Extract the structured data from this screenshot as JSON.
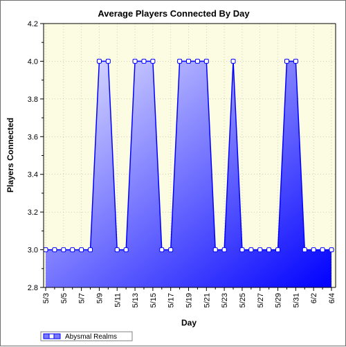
{
  "chart_data": {
    "type": "area",
    "title": "Average Players Connected By Day",
    "xlabel": "Day",
    "ylabel": "Players Connected",
    "ylim": [
      2.8,
      4.2
    ],
    "yticks": [
      "2.8",
      "3.0",
      "3.2",
      "3.4",
      "3.6",
      "3.8",
      "4.0",
      "4.2"
    ],
    "x": [
      "5/3",
      "5/4",
      "5/5",
      "5/6",
      "5/7",
      "5/8",
      "5/9",
      "5/10",
      "5/11",
      "5/12",
      "5/13",
      "5/14",
      "5/15",
      "5/16",
      "5/17",
      "5/18",
      "5/19",
      "5/20",
      "5/21",
      "5/22",
      "5/23",
      "5/24",
      "5/25",
      "5/26",
      "5/27",
      "5/28",
      "5/29",
      "5/30",
      "5/31",
      "6/1",
      "6/2",
      "6/3",
      "6/4"
    ],
    "xtick_labels": [
      "5/3",
      "5/5",
      "5/7",
      "5/9",
      "5/11",
      "5/13",
      "5/15",
      "5/17",
      "5/19",
      "5/21",
      "5/23",
      "5/25",
      "5/27",
      "5/29",
      "5/31",
      "6/2",
      "6/4"
    ],
    "grid": true,
    "legend_position": "bottom-left",
    "series": [
      {
        "name": "Abysmal Realms",
        "values": [
          3,
          3,
          3,
          3,
          3,
          3,
          4,
          4,
          3,
          3,
          4,
          4,
          4,
          3,
          3,
          4,
          4,
          4,
          4,
          3,
          3,
          4,
          3,
          3,
          3,
          3,
          3,
          4,
          4,
          3,
          3,
          3,
          3
        ]
      }
    ],
    "colors": {
      "plot_background": "#fcfce2",
      "line": "#0000ff",
      "fill_top": "#c8c8ff",
      "fill_bottom": "#0000ff",
      "grid": "#b4b4a0"
    }
  }
}
